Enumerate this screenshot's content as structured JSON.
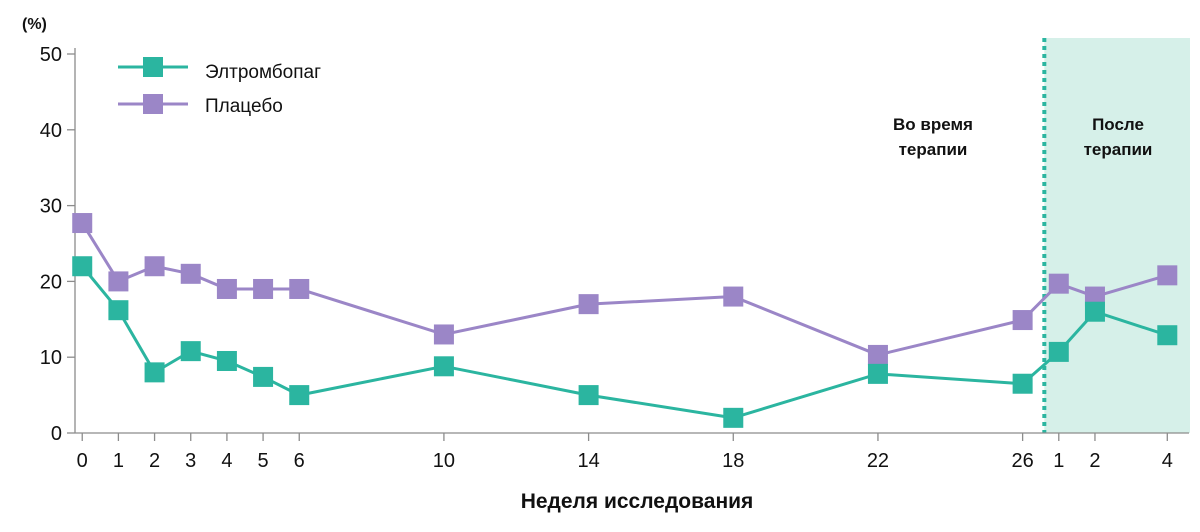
{
  "chart_data": {
    "type": "line",
    "y_unit": "(%)",
    "xlabel": "Неделя исследования",
    "ylim": [
      0,
      50
    ],
    "y_ticks": [
      0,
      10,
      20,
      30,
      40,
      50
    ],
    "categories": [
      "0",
      "1",
      "2",
      "3",
      "4",
      "5",
      "6",
      "10",
      "14",
      "18",
      "22",
      "26",
      "1",
      "2",
      "4"
    ],
    "x": [
      0,
      1,
      2,
      3,
      4,
      5,
      6,
      10,
      14,
      18,
      22,
      26,
      27,
      28,
      30
    ],
    "x_range": [
      -0.2,
      30.6
    ],
    "series": [
      {
        "name": "Элтромбопаг",
        "color": "#2bb5a0",
        "values": [
          22,
          16.2,
          8,
          10.8,
          9.5,
          7.4,
          5,
          8.8,
          5,
          2,
          7.8,
          6.5,
          10.7,
          16,
          12.9
        ]
      },
      {
        "name": "Плацебо",
        "color": "#9b86c7",
        "values": [
          27.7,
          20,
          22,
          21,
          19,
          19,
          19,
          13,
          17,
          18,
          10.3,
          14.9,
          19.7,
          18,
          20.8
        ]
      }
    ],
    "phases": [
      {
        "label_line1": "Во время",
        "label_line2": "терапии",
        "shaded": false
      },
      {
        "label_line1": "После",
        "label_line2": "терапии",
        "shaded": true,
        "start_x": 26.6,
        "color": "#d6f0e9",
        "divider_color": "#2bb5a0"
      }
    ],
    "legend_position": "top-left",
    "grid": false
  }
}
